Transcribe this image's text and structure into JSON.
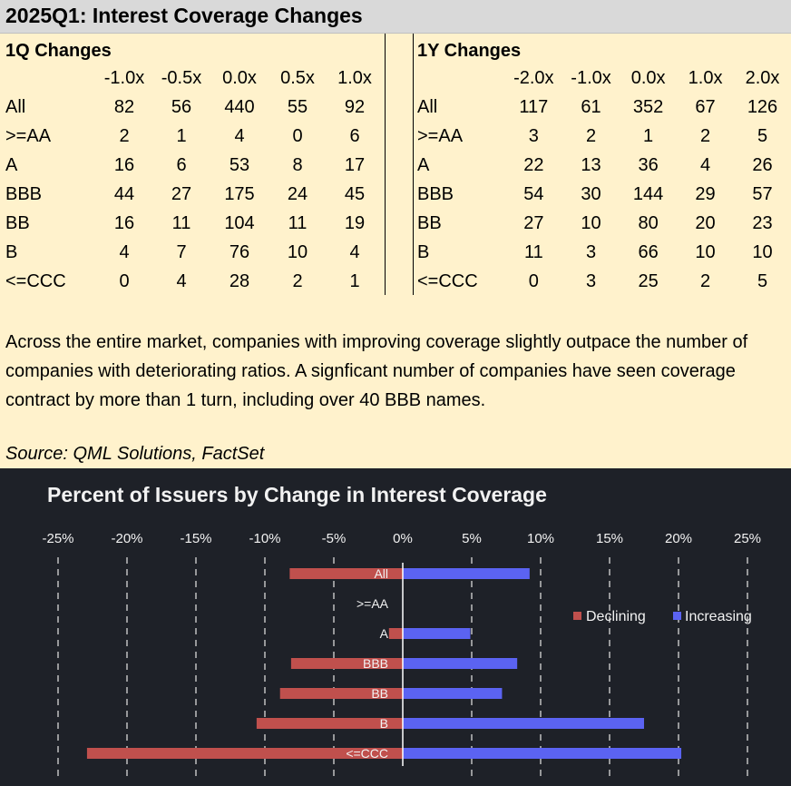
{
  "title": "2025Q1: Interest Coverage Changes",
  "q1": {
    "heading": "1Q Changes",
    "columns": [
      "-1.0x",
      "-0.5x",
      "0.0x",
      "0.5x",
      "1.0x"
    ],
    "rows": [
      {
        "label": "All",
        "values": [
          "82",
          "56",
          "440",
          "55",
          "92"
        ]
      },
      {
        "label": ">=AA",
        "values": [
          "2",
          "1",
          "4",
          "0",
          "6"
        ]
      },
      {
        "label": "A",
        "values": [
          "16",
          "6",
          "53",
          "8",
          "17"
        ]
      },
      {
        "label": "BBB",
        "values": [
          "44",
          "27",
          "175",
          "24",
          "45"
        ]
      },
      {
        "label": "BB",
        "values": [
          "16",
          "11",
          "104",
          "11",
          "19"
        ]
      },
      {
        "label": "B",
        "values": [
          "4",
          "7",
          "76",
          "10",
          "4"
        ]
      },
      {
        "label": "<=CCC",
        "values": [
          "0",
          "4",
          "28",
          "2",
          "1"
        ]
      }
    ]
  },
  "y1": {
    "heading": "1Y Changes",
    "columns": [
      "-2.0x",
      "-1.0x",
      "0.0x",
      "1.0x",
      "2.0x"
    ],
    "rows": [
      {
        "label": "All",
        "values": [
          "117",
          "61",
          "352",
          "67",
          "126"
        ]
      },
      {
        "label": ">=AA",
        "values": [
          "3",
          "2",
          "1",
          "2",
          "5"
        ]
      },
      {
        "label": "A",
        "values": [
          "22",
          "13",
          "36",
          "4",
          "26"
        ]
      },
      {
        "label": "BBB",
        "values": [
          "54",
          "30",
          "144",
          "29",
          "57"
        ]
      },
      {
        "label": "BB",
        "values": [
          "27",
          "10",
          "80",
          "20",
          "23"
        ]
      },
      {
        "label": "B",
        "values": [
          "11",
          "3",
          "66",
          "10",
          "10"
        ]
      },
      {
        "label": "<=CCC",
        "values": [
          "0",
          "3",
          "25",
          "2",
          "5"
        ]
      }
    ]
  },
  "commentary": "Across the entire market, companies with improving coverage slightly outpace the number of companies with deteriorating ratios. A signficant number of companies have seen coverage contract by more than 1 turn, including over 40 BBB names.",
  "source": "Source: QML Solutions, FactSet",
  "colors": {
    "title_bg": "#d9d9d9",
    "panel_bg": "#fff2cc",
    "chart_bg": "#1e2128",
    "declining": "#c0504d",
    "increasing": "#5b63f2",
    "text_light": "#f2f2f2",
    "grid": "#bfbfbf"
  },
  "chart_data": {
    "type": "bar",
    "orientation": "horizontal",
    "title": "Percent of Issuers by Change in Interest Coverage",
    "categories": [
      "All",
      ">=AA",
      "A",
      "BBB",
      "BB",
      "B",
      "<=CCC"
    ],
    "series": [
      {
        "name": "Declining",
        "values": [
          -8.2,
          0,
          -1.0,
          -8.1,
          -8.9,
          -10.6,
          -22.9
        ]
      },
      {
        "name": "Increasing",
        "values": [
          9.2,
          0,
          4.9,
          8.3,
          7.2,
          17.5,
          20.2
        ]
      }
    ],
    "xlim": [
      -25,
      25
    ],
    "xticks": [
      -25,
      -20,
      -15,
      -10,
      -5,
      0,
      5,
      10,
      15,
      20,
      25
    ],
    "xtick_labels": [
      "-25%",
      "-20%",
      "-15%",
      "-10%",
      "-5%",
      "0%",
      "5%",
      "10%",
      "15%",
      "20%",
      "25%"
    ],
    "legend": [
      "Declining",
      "Increasing"
    ],
    "legend_position": "right",
    "gridlines": "vertical dashed",
    "xlabel": "",
    "ylabel": ""
  }
}
